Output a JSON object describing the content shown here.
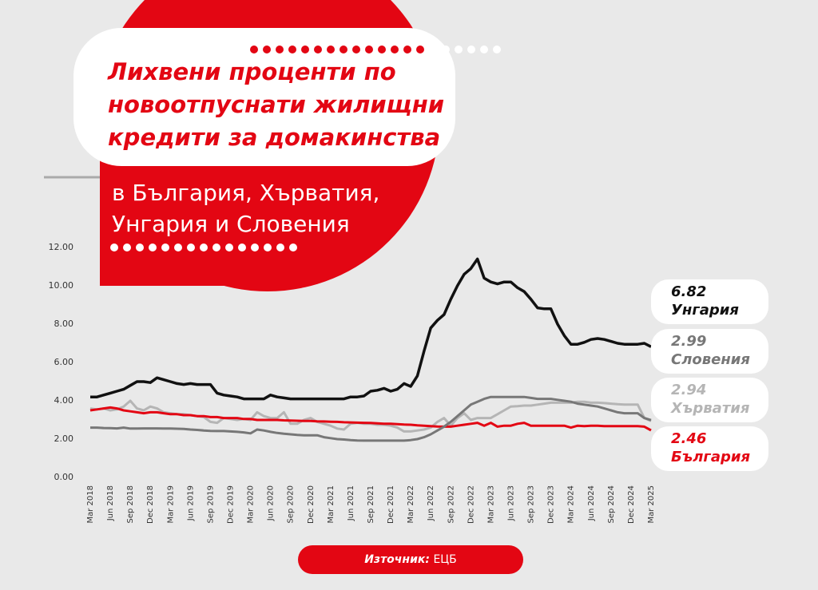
{
  "chart_data": {
    "type": "line",
    "title_lines": [
      "Лихвени проценти по",
      "новоотпуснати жилищни",
      "кредити за домакинства"
    ],
    "subtitle_lines": [
      "в България, Хърватия,",
      "Унгария и Словения"
    ],
    "source": {
      "label": "Източник:",
      "text": "ЕЦБ"
    },
    "categories": [
      "Mar 2018",
      null,
      null,
      "Jun 2018",
      null,
      null,
      "Sep 2018",
      null,
      null,
      "Dec 2018",
      null,
      null,
      "Mar 2019",
      null,
      null,
      "Jun 2019",
      null,
      null,
      "Sep 2019",
      null,
      null,
      "Dec 2019",
      null,
      null,
      "Mar 2020",
      null,
      null,
      "Jun 2020",
      null,
      null,
      "Sep 2020",
      null,
      null,
      "Dec 2020",
      null,
      null,
      "Mar 2021",
      null,
      null,
      "Jun 2021",
      null,
      null,
      "Sep 2021",
      null,
      null,
      "Dec 2021",
      null,
      null,
      "Mar 2022",
      null,
      null,
      "Jun 2022",
      null,
      null,
      "Sep 2022",
      null,
      null,
      "Dec 2022",
      null,
      null,
      "Mar 2023",
      null,
      null,
      "Jun 2023",
      null,
      null,
      "Sep 2023",
      null,
      null,
      "Dec 2023",
      null,
      null,
      "Mar 2024",
      null,
      null,
      "Jun 2024",
      null,
      null,
      "Sep 2024",
      null,
      null,
      "Dec 2024",
      null,
      null,
      "Mar 2025"
    ],
    "series": [
      {
        "name": "Унгария",
        "color": "#111111",
        "values": [
          4.2,
          4.2,
          4.3,
          4.4,
          4.5,
          4.6,
          4.8,
          5.0,
          5.0,
          4.95,
          5.2,
          5.1,
          5.0,
          4.9,
          4.85,
          4.9,
          4.85,
          4.85,
          4.85,
          4.4,
          4.3,
          4.25,
          4.2,
          4.1,
          4.1,
          4.1,
          4.1,
          4.3,
          4.2,
          4.15,
          4.1,
          4.1,
          4.1,
          4.1,
          4.1,
          4.1,
          4.1,
          4.1,
          4.1,
          4.2,
          4.2,
          4.25,
          4.5,
          4.55,
          4.65,
          4.5,
          4.6,
          4.9,
          4.75,
          5.3,
          6.6,
          7.8,
          8.2,
          8.5,
          9.3,
          10.0,
          10.6,
          10.9,
          11.4,
          10.4,
          10.2,
          10.1,
          10.2,
          10.2,
          9.9,
          9.7,
          9.3,
          8.85,
          8.8,
          8.8,
          8.0,
          7.4,
          6.95,
          6.95,
          7.05,
          7.2,
          7.25,
          7.2,
          7.1,
          7.0,
          6.95,
          6.95,
          6.95,
          7.0,
          6.82
        ]
      },
      {
        "name": "Словения",
        "color": "#777777",
        "values": [
          2.6,
          2.6,
          2.58,
          2.57,
          2.56,
          2.6,
          2.55,
          2.55,
          2.56,
          2.56,
          2.56,
          2.55,
          2.55,
          2.54,
          2.53,
          2.5,
          2.48,
          2.45,
          2.43,
          2.42,
          2.42,
          2.4,
          2.38,
          2.35,
          2.3,
          2.5,
          2.45,
          2.38,
          2.32,
          2.28,
          2.25,
          2.22,
          2.2,
          2.2,
          2.2,
          2.1,
          2.05,
          2.0,
          1.98,
          1.95,
          1.93,
          1.92,
          1.92,
          1.92,
          1.92,
          1.92,
          1.92,
          1.92,
          1.95,
          2.0,
          2.1,
          2.25,
          2.45,
          2.65,
          2.9,
          3.2,
          3.5,
          3.8,
          3.95,
          4.1,
          4.2,
          4.2,
          4.2,
          4.2,
          4.2,
          4.2,
          4.15,
          4.1,
          4.1,
          4.1,
          4.05,
          4.0,
          3.95,
          3.85,
          3.8,
          3.75,
          3.7,
          3.6,
          3.5,
          3.4,
          3.35,
          3.35,
          3.35,
          3.1,
          2.99
        ]
      },
      {
        "name": "Хърватия",
        "color": "#b5b5b5",
        "values": [
          3.6,
          3.55,
          3.6,
          3.5,
          3.55,
          3.7,
          4.0,
          3.6,
          3.5,
          3.7,
          3.6,
          3.4,
          3.35,
          3.3,
          3.3,
          3.25,
          3.2,
          3.15,
          2.9,
          2.85,
          3.1,
          3.05,
          3.0,
          3.05,
          3.0,
          3.4,
          3.2,
          3.1,
          3.1,
          3.4,
          2.8,
          2.8,
          3.0,
          3.1,
          2.9,
          2.8,
          2.7,
          2.55,
          2.5,
          2.8,
          2.85,
          2.8,
          2.8,
          2.75,
          2.75,
          2.7,
          2.6,
          2.4,
          2.4,
          2.45,
          2.5,
          2.6,
          2.9,
          3.1,
          2.7,
          3.1,
          3.35,
          3.0,
          3.1,
          3.1,
          3.1,
          3.3,
          3.5,
          3.7,
          3.72,
          3.75,
          3.75,
          3.8,
          3.85,
          3.9,
          3.9,
          3.9,
          3.9,
          3.95,
          3.95,
          3.9,
          3.9,
          3.88,
          3.85,
          3.82,
          3.8,
          3.8,
          3.8,
          3.1,
          2.94
        ]
      },
      {
        "name": "България",
        "color": "#e30613",
        "values": [
          3.5,
          3.55,
          3.6,
          3.65,
          3.6,
          3.5,
          3.45,
          3.4,
          3.35,
          3.4,
          3.4,
          3.35,
          3.3,
          3.3,
          3.25,
          3.25,
          3.2,
          3.2,
          3.15,
          3.15,
          3.1,
          3.1,
          3.1,
          3.05,
          3.05,
          3.0,
          3.0,
          3.0,
          3.0,
          2.98,
          2.97,
          2.96,
          2.95,
          2.95,
          2.93,
          2.92,
          2.91,
          2.9,
          2.88,
          2.87,
          2.86,
          2.85,
          2.84,
          2.82,
          2.8,
          2.8,
          2.78,
          2.76,
          2.75,
          2.72,
          2.7,
          2.68,
          2.66,
          2.65,
          2.65,
          2.7,
          2.75,
          2.8,
          2.85,
          2.7,
          2.85,
          2.65,
          2.7,
          2.7,
          2.8,
          2.85,
          2.7,
          2.7,
          2.7,
          2.7,
          2.7,
          2.7,
          2.6,
          2.7,
          2.68,
          2.7,
          2.7,
          2.68,
          2.68,
          2.68,
          2.68,
          2.68,
          2.68,
          2.65,
          2.46
        ]
      }
    ],
    "ylim": [
      0,
      12
    ],
    "yticks": [
      {
        "value": 0,
        "label": "0.00"
      },
      {
        "value": 2,
        "label": "2.00"
      },
      {
        "value": 4,
        "label": "4.00"
      },
      {
        "value": 6,
        "label": "6.00"
      },
      {
        "value": 8,
        "label": "8.00"
      },
      {
        "value": 10,
        "label": "10.00"
      },
      {
        "value": 12,
        "label": "12.00"
      }
    ],
    "grid": false
  }
}
